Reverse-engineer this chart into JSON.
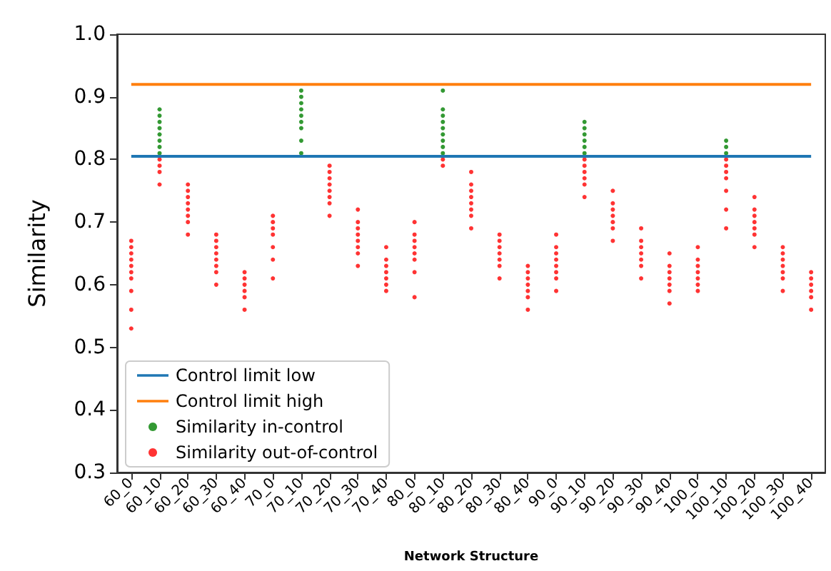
{
  "chart_data": {
    "type": "scatter",
    "xlabel": "Network Structure",
    "ylabel": "Similarity",
    "categories": [
      "60_0",
      "60_10",
      "60_20",
      "60_30",
      "60_40",
      "70_0",
      "70_10",
      "70_20",
      "70_30",
      "70_40",
      "80_0",
      "80_10",
      "80_20",
      "80_30",
      "80_40",
      "90_0",
      "90_10",
      "90_20",
      "90_30",
      "90_40",
      "100_0",
      "100_10",
      "100_20",
      "100_30",
      "100_40"
    ],
    "ylim": [
      0.3,
      1.0
    ],
    "yticks": [
      0.3,
      0.4,
      0.5,
      0.6,
      0.7,
      0.8,
      0.9,
      {
        "value": 1.0,
        "label": "1.0"
      }
    ],
    "grid": false,
    "legend": "bottom left",
    "marker": "circle",
    "ref_lines": [
      {
        "axis": "y",
        "value": 0.805,
        "label": "Control limit low",
        "color": "#1f77b4"
      },
      {
        "axis": "y",
        "value": 0.92,
        "label": "Control limit high",
        "color": "#ff7f0e"
      }
    ],
    "series": [
      {
        "name": "Similarity in-control",
        "color": "#008000",
        "x": [
          "60_10",
          "60_10",
          "60_10",
          "60_10",
          "60_10",
          "60_10",
          "60_10",
          "60_10",
          "70_10",
          "70_10",
          "70_10",
          "70_10",
          "70_10",
          "70_10",
          "70_10",
          "70_10",
          "70_10",
          "80_10",
          "80_10",
          "80_10",
          "80_10",
          "80_10",
          "80_10",
          "80_10",
          "80_10",
          "80_10",
          "90_10",
          "90_10",
          "90_10",
          "90_10",
          "90_10",
          "90_10",
          "100_10",
          "100_10",
          "100_10"
        ],
        "values": [
          0.81,
          0.82,
          0.83,
          0.84,
          0.85,
          0.86,
          0.87,
          0.88,
          0.81,
          0.83,
          0.85,
          0.86,
          0.87,
          0.88,
          0.89,
          0.9,
          0.91,
          0.81,
          0.82,
          0.83,
          0.84,
          0.85,
          0.86,
          0.87,
          0.88,
          0.91,
          0.81,
          0.82,
          0.83,
          0.84,
          0.85,
          0.86,
          0.81,
          0.82,
          0.83
        ]
      },
      {
        "name": "Similarity out-of-control",
        "color": "#ff0000",
        "x": [
          "60_0",
          "60_0",
          "60_0",
          "60_0",
          "60_0",
          "60_0",
          "60_0",
          "60_0",
          "60_0",
          "60_0",
          "60_10",
          "60_10",
          "60_10",
          "60_10",
          "60_20",
          "60_20",
          "60_20",
          "60_20",
          "60_20",
          "60_20",
          "60_20",
          "60_20",
          "60_30",
          "60_30",
          "60_30",
          "60_30",
          "60_30",
          "60_30",
          "60_30",
          "60_30",
          "60_40",
          "60_40",
          "60_40",
          "60_40",
          "60_40",
          "60_40",
          "70_0",
          "70_0",
          "70_0",
          "70_0",
          "70_0",
          "70_0",
          "70_0",
          "70_20",
          "70_20",
          "70_20",
          "70_20",
          "70_20",
          "70_20",
          "70_20",
          "70_20",
          "70_30",
          "70_30",
          "70_30",
          "70_30",
          "70_30",
          "70_30",
          "70_30",
          "70_30",
          "70_40",
          "70_40",
          "70_40",
          "70_40",
          "70_40",
          "70_40",
          "70_40",
          "80_0",
          "80_0",
          "80_0",
          "80_0",
          "80_0",
          "80_0",
          "80_0",
          "80_0",
          "80_10",
          "80_10",
          "80_20",
          "80_20",
          "80_20",
          "80_20",
          "80_20",
          "80_20",
          "80_20",
          "80_20",
          "80_30",
          "80_30",
          "80_30",
          "80_30",
          "80_30",
          "80_30",
          "80_30",
          "80_40",
          "80_40",
          "80_40",
          "80_40",
          "80_40",
          "80_40",
          "80_40",
          "90_0",
          "90_0",
          "90_0",
          "90_0",
          "90_0",
          "90_0",
          "90_0",
          "90_0",
          "90_10",
          "90_10",
          "90_10",
          "90_10",
          "90_10",
          "90_10",
          "90_20",
          "90_20",
          "90_20",
          "90_20",
          "90_20",
          "90_20",
          "90_20",
          "90_30",
          "90_30",
          "90_30",
          "90_30",
          "90_30",
          "90_30",
          "90_30",
          "90_40",
          "90_40",
          "90_40",
          "90_40",
          "90_40",
          "90_40",
          "90_40",
          "100_0",
          "100_0",
          "100_0",
          "100_0",
          "100_0",
          "100_0",
          "100_0",
          "100_10",
          "100_10",
          "100_10",
          "100_10",
          "100_10",
          "100_10",
          "100_10",
          "100_20",
          "100_20",
          "100_20",
          "100_20",
          "100_20",
          "100_20",
          "100_20",
          "100_30",
          "100_30",
          "100_30",
          "100_30",
          "100_30",
          "100_30",
          "100_30",
          "100_40",
          "100_40",
          "100_40",
          "100_40",
          "100_40",
          "100_40"
        ],
        "values": [
          0.53,
          0.56,
          0.59,
          0.61,
          0.62,
          0.63,
          0.64,
          0.65,
          0.66,
          0.67,
          0.76,
          0.78,
          0.79,
          0.8,
          0.68,
          0.7,
          0.71,
          0.72,
          0.73,
          0.74,
          0.75,
          0.76,
          0.6,
          0.62,
          0.63,
          0.64,
          0.65,
          0.66,
          0.67,
          0.68,
          0.56,
          0.58,
          0.59,
          0.6,
          0.61,
          0.62,
          0.61,
          0.64,
          0.66,
          0.68,
          0.69,
          0.7,
          0.71,
          0.71,
          0.73,
          0.74,
          0.75,
          0.76,
          0.77,
          0.78,
          0.79,
          0.63,
          0.65,
          0.66,
          0.67,
          0.68,
          0.69,
          0.7,
          0.72,
          0.59,
          0.6,
          0.61,
          0.62,
          0.63,
          0.64,
          0.66,
          0.58,
          0.62,
          0.64,
          0.65,
          0.66,
          0.67,
          0.68,
          0.7,
          0.79,
          0.8,
          0.69,
          0.71,
          0.72,
          0.73,
          0.74,
          0.75,
          0.76,
          0.78,
          0.61,
          0.63,
          0.64,
          0.65,
          0.66,
          0.67,
          0.68,
          0.56,
          0.58,
          0.59,
          0.6,
          0.61,
          0.62,
          0.63,
          0.59,
          0.61,
          0.62,
          0.63,
          0.64,
          0.65,
          0.66,
          0.68,
          0.74,
          0.76,
          0.77,
          0.78,
          0.79,
          0.8,
          0.67,
          0.69,
          0.7,
          0.71,
          0.72,
          0.73,
          0.75,
          0.61,
          0.63,
          0.64,
          0.65,
          0.66,
          0.67,
          0.69,
          0.57,
          0.59,
          0.6,
          0.61,
          0.62,
          0.63,
          0.65,
          0.59,
          0.6,
          0.61,
          0.62,
          0.63,
          0.64,
          0.66,
          0.69,
          0.72,
          0.75,
          0.77,
          0.78,
          0.79,
          0.8,
          0.66,
          0.68,
          0.69,
          0.7,
          0.71,
          0.72,
          0.74,
          0.59,
          0.61,
          0.62,
          0.63,
          0.64,
          0.65,
          0.66,
          0.56,
          0.58,
          0.59,
          0.6,
          0.61,
          0.62
        ]
      }
    ]
  }
}
